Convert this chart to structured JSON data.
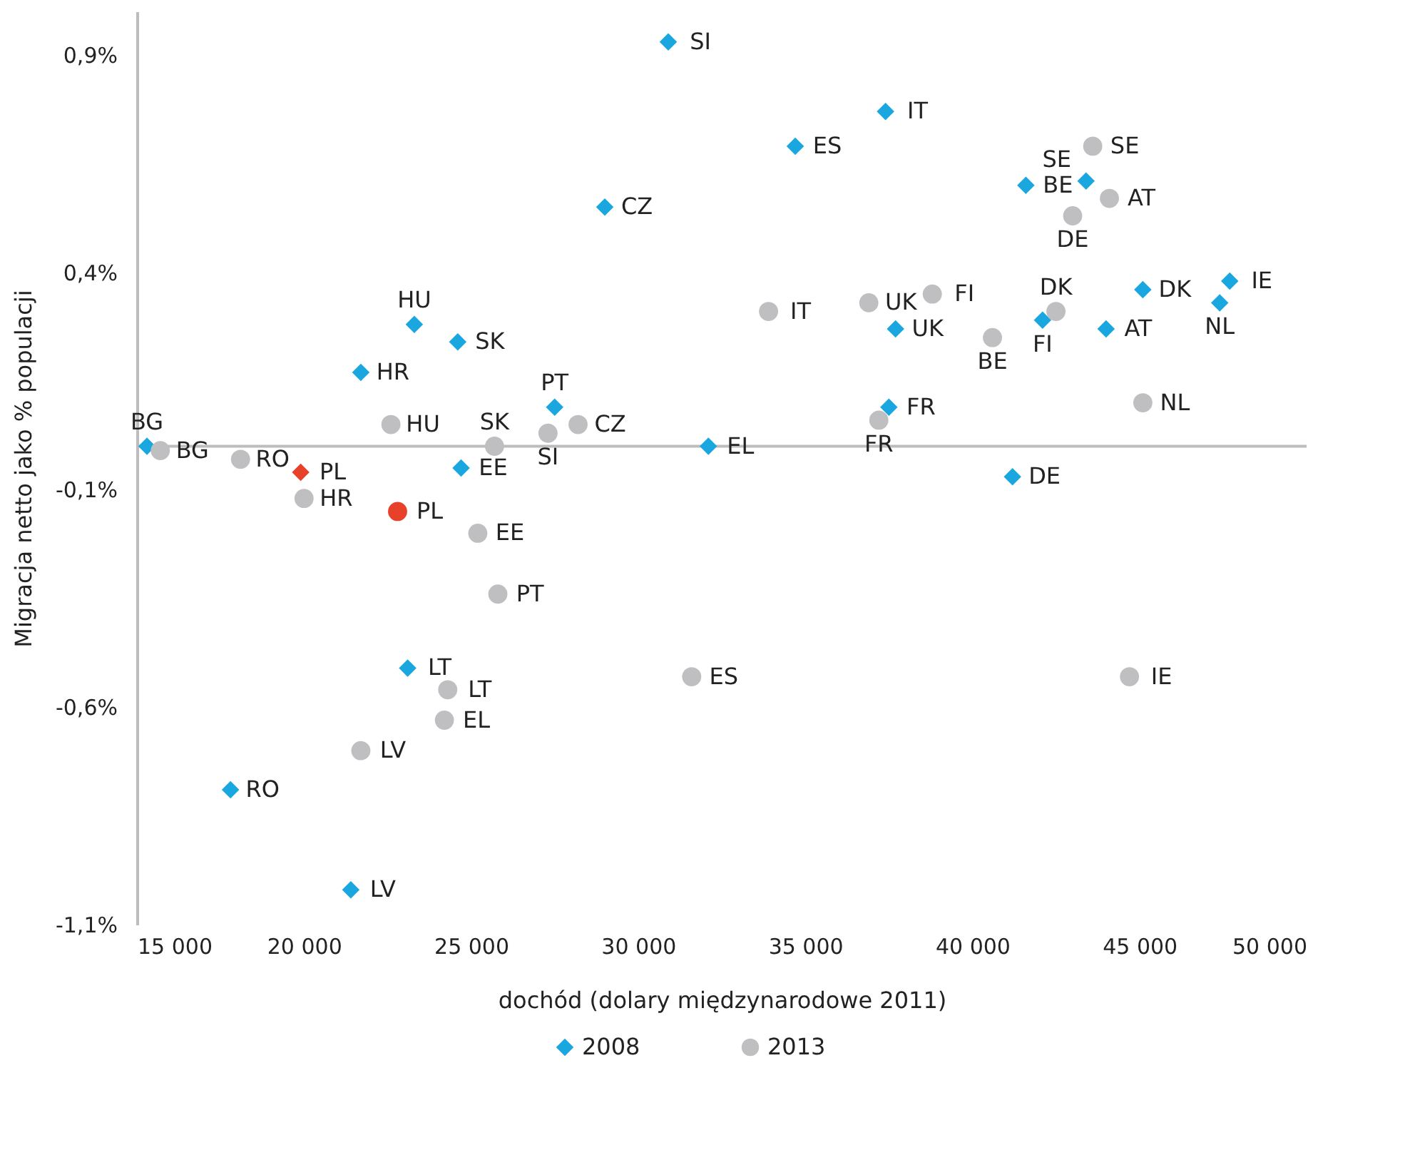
{
  "chart_data": {
    "type": "scatter",
    "xlabel": "dochód (dolary międzynarodowe 2011)",
    "ylabel": "Migracja netto jako % populacji",
    "xlim": [
      15000,
      50000
    ],
    "ylim": [
      -1.1,
      1.0
    ],
    "xticks": [
      {
        "value": 15000,
        "label": "15 000"
      },
      {
        "value": 20000,
        "label": "20 000"
      },
      {
        "value": 25000,
        "label": "25 000"
      },
      {
        "value": 30000,
        "label": "30 000"
      },
      {
        "value": 35000,
        "label": "35 000"
      },
      {
        "value": 40000,
        "label": "40 000"
      },
      {
        "value": 45000,
        "label": "45 000"
      },
      {
        "value": 50000,
        "label": "50 000"
      }
    ],
    "yticks": [
      {
        "value": 0.9,
        "label": "0,9%"
      },
      {
        "value": 0.4,
        "label": "0,4%"
      },
      {
        "value": -0.1,
        "label": "-0,1%"
      },
      {
        "value": -0.6,
        "label": "-0,6%"
      },
      {
        "value": -1.1,
        "label": "-1,1%"
      }
    ],
    "ref_lines": [
      {
        "axis": "y",
        "value": 0,
        "color": "#bdbdbd"
      }
    ],
    "legend": "bottom",
    "grid": false,
    "series": [
      {
        "name": "2008",
        "color": "#1aa7e0",
        "marker": "diamond",
        "x": [
          15300,
          30900,
          37400,
          34700,
          29000,
          41600,
          43400,
          23300,
          24600,
          21700,
          27500,
          32100,
          24700,
          37500,
          37700,
          42100,
          45100,
          47700,
          47400,
          44000,
          41200,
          23100,
          17800,
          21400,
          19900
        ],
        "values": [
          0.0,
          0.93,
          0.77,
          0.69,
          0.55,
          0.6,
          0.61,
          0.28,
          0.24,
          0.17,
          0.09,
          0.0,
          -0.05,
          0.09,
          0.27,
          0.29,
          0.36,
          0.38,
          0.33,
          0.27,
          -0.07,
          -0.51,
          -0.79,
          -1.02,
          -0.06
        ],
        "value_labels": [
          "BG",
          "SI",
          "IT",
          "ES",
          "CZ",
          "BE",
          "SE",
          "HU",
          "SK",
          "HR",
          "PT",
          "EL",
          "EE",
          "FR",
          "UK",
          "FI",
          "DK",
          "IE",
          "NL",
          "AT",
          "DE",
          "LT",
          "RO",
          "LV",
          "PL"
        ],
        "colors": [
          "#1aa7e0",
          "#1aa7e0",
          "#1aa7e0",
          "#1aa7e0",
          "#1aa7e0",
          "#1aa7e0",
          "#1aa7e0",
          "#1aa7e0",
          "#1aa7e0",
          "#1aa7e0",
          "#1aa7e0",
          "#1aa7e0",
          "#1aa7e0",
          "#1aa7e0",
          "#1aa7e0",
          "#1aa7e0",
          "#1aa7e0",
          "#1aa7e0",
          "#1aa7e0",
          "#1aa7e0",
          "#1aa7e0",
          "#1aa7e0",
          "#1aa7e0",
          "#1aa7e0",
          "#e8412a"
        ]
      },
      {
        "name": "2013",
        "color": "#bfbfc1",
        "marker": "circle",
        "x": [
          15700,
          18100,
          20000,
          22800,
          22600,
          25700,
          27300,
          28200,
          25200,
          25800,
          24300,
          24200,
          21700,
          31600,
          33900,
          36900,
          38800,
          37200,
          40600,
          42500,
          43600,
          44100,
          43000,
          45100,
          44700
        ],
        "values": [
          -0.01,
          -0.03,
          -0.12,
          -0.15,
          0.05,
          0.0,
          0.03,
          0.05,
          -0.2,
          -0.34,
          -0.56,
          -0.63,
          -0.7,
          -0.53,
          0.31,
          0.33,
          0.35,
          0.06,
          0.25,
          0.31,
          0.69,
          0.57,
          0.53,
          0.1,
          -0.53
        ],
        "value_labels": [
          "BG",
          "RO",
          "HR",
          "PL",
          "HU",
          "SK",
          "SI",
          "CZ",
          "EE",
          "PT",
          "LT",
          "EL",
          "LV",
          "ES",
          "IT",
          "UK",
          "FI",
          "FR",
          "BE",
          "DK",
          "SE",
          "AT",
          "DE",
          "NL",
          "IE"
        ],
        "colors": [
          "#bfbfc1",
          "#bfbfc1",
          "#bfbfc1",
          "#e8412a",
          "#bfbfc1",
          "#bfbfc1",
          "#bfbfc1",
          "#bfbfc1",
          "#bfbfc1",
          "#bfbfc1",
          "#bfbfc1",
          "#bfbfc1",
          "#bfbfc1",
          "#bfbfc1",
          "#bfbfc1",
          "#bfbfc1",
          "#bfbfc1",
          "#bfbfc1",
          "#bfbfc1",
          "#bfbfc1",
          "#bfbfc1",
          "#bfbfc1",
          "#bfbfc1",
          "#bfbfc1",
          "#bfbfc1"
        ]
      }
    ]
  }
}
